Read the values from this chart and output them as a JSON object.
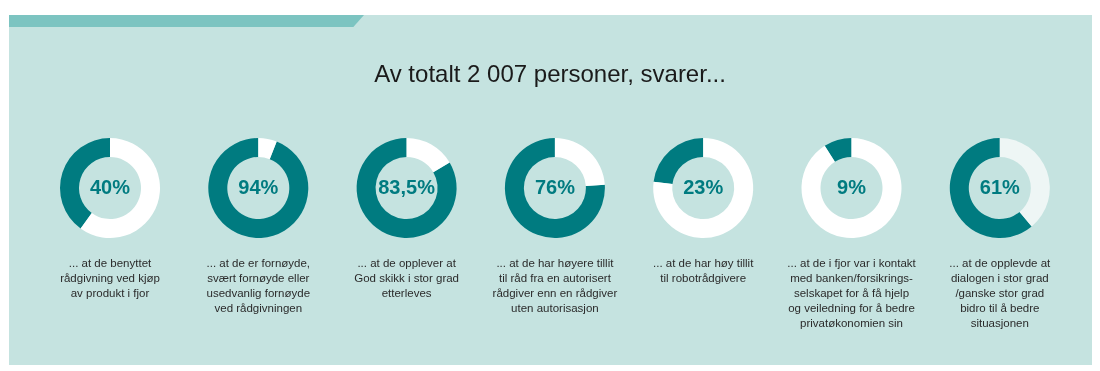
{
  "chart_data": [
    {
      "type": "donut",
      "categories": [
        null,
        null
      ],
      "values": [
        40,
        60
      ],
      "colors": [
        "#007b80",
        "#ffffff"
      ],
      "value_labels": [
        "40%",
        null
      ],
      "annotations": [
        "... at de benyttet\nrådgivning ved kjøp\nav produkt i fjor"
      ]
    },
    {
      "type": "donut",
      "categories": [
        null,
        null
      ],
      "values": [
        94,
        6
      ],
      "colors": [
        "#007b80",
        "#ffffff"
      ],
      "value_labels": [
        "94%",
        null
      ],
      "annotations": [
        "... at de er fornøyde,\nsvært fornøyde eller\nusedvanlig fornøyde\nved rådgivningen"
      ]
    },
    {
      "type": "donut",
      "categories": [
        null,
        null
      ],
      "values": [
        83.5,
        16.5
      ],
      "colors": [
        "#007b80",
        "#ffffff"
      ],
      "value_labels": [
        "83,5%",
        null
      ],
      "annotations": [
        "... at de opplever at\nGod skikk i stor grad\netterleves"
      ]
    },
    {
      "type": "donut",
      "title": "Av totalt 2 007 personer, svarer...",
      "categories": [
        null,
        null
      ],
      "values": [
        76,
        24
      ],
      "colors": [
        "#007b80",
        "#ffffff"
      ],
      "value_labels": [
        "76%",
        null
      ],
      "annotations": [
        "... at de har høyere tillit\ntil råd fra en autorisert\nrådgiver enn en rådgiver\nuten autorisasjon"
      ]
    },
    {
      "type": "donut",
      "categories": [
        null,
        null
      ],
      "values": [
        23,
        77
      ],
      "colors": [
        "#007b80",
        "#ffffff"
      ],
      "value_labels": [
        "23%",
        null
      ],
      "annotations": [
        "... at de har høy tillit\ntil robotrådgivere"
      ]
    },
    {
      "type": "donut",
      "categories": [
        null,
        null
      ],
      "values": [
        9,
        91
      ],
      "colors": [
        "#007b80",
        "#ffffff"
      ],
      "value_labels": [
        "9%",
        null
      ],
      "annotations": [
        "... at de i fjor var i kontakt\nmed banken/forsikrings-\nselskapet for å få hjelp\nog veiledning for å bedre\nprivatøkonomien sin"
      ]
    },
    {
      "type": "donut",
      "categories": [
        null,
        null
      ],
      "values": [
        61,
        39
      ],
      "colors": [
        "#007b80",
        "#eef6f5"
      ],
      "value_labels": [
        "61%",
        null
      ],
      "annotations": [
        "... at de opplevde at\ndialogen i stor grad\n/ganske stor grad\nbidro til å bedre\nsituasjonen"
      ]
    }
  ]
}
